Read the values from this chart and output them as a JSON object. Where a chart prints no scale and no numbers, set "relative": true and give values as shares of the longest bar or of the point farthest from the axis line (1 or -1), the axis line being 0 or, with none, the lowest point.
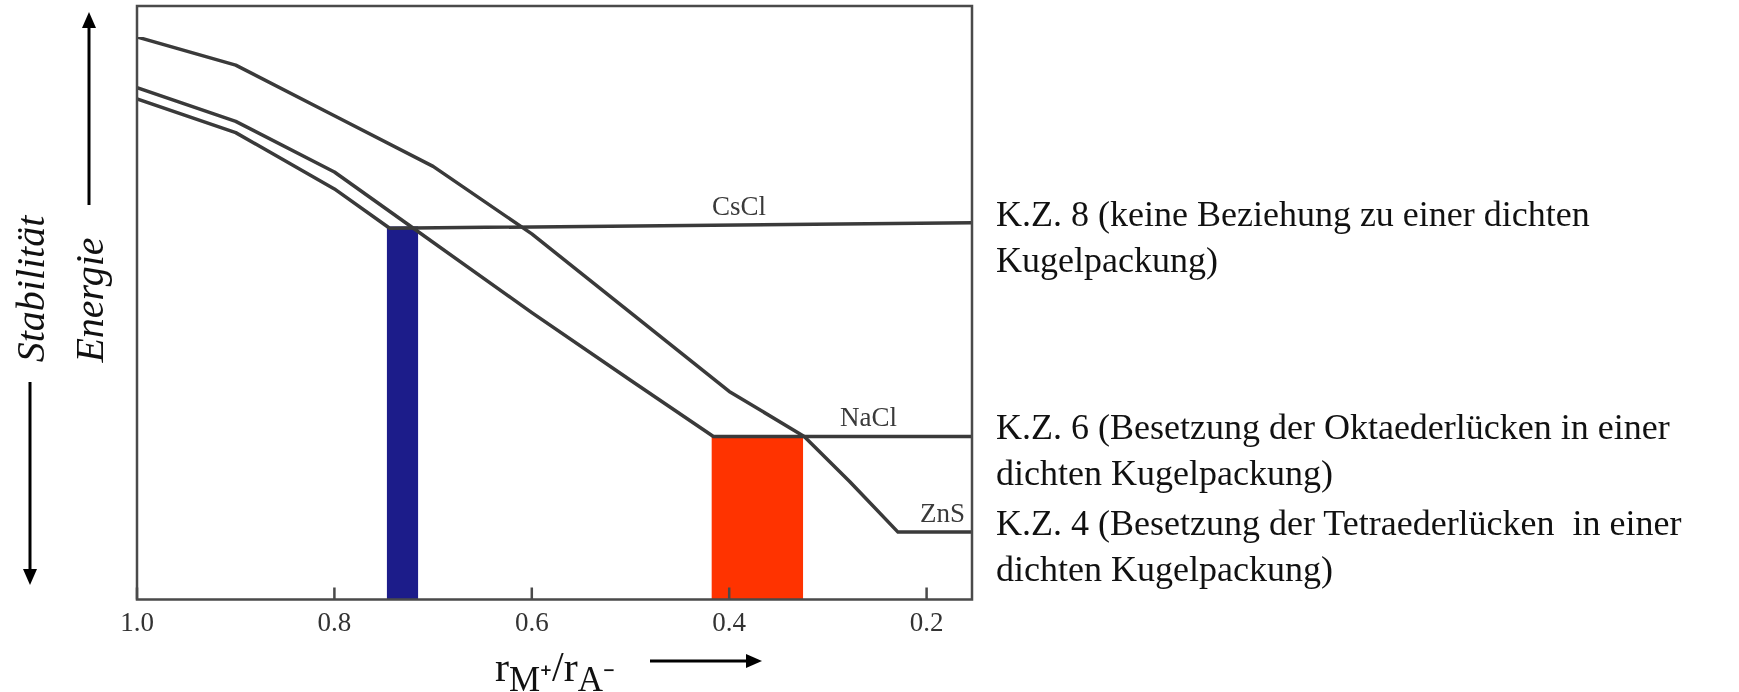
{
  "chart_data": {
    "type": "line",
    "relative": true,
    "legend": false,
    "grid": false,
    "xlabel": "r$_{M⁺}$/r$_{A⁻}$",
    "ylabel": "Energie",
    "xlim": [
      1.0,
      0.154
    ],
    "xticks": [
      {
        "value": 1.0,
        "label": "1.0"
      },
      0.8,
      0.6,
      0.4,
      0.2
    ],
    "series": [
      {
        "name": "CsCl",
        "color": "#3a3a3a",
        "x": [
          1.0,
          0.9,
          0.8,
          0.744,
          0.154
        ],
        "values": [
          0.89,
          0.83,
          0.73,
          0.66,
          0.67
        ]
      },
      {
        "name": "NaCl",
        "color": "#3a3a3a",
        "x": [
          1.0,
          0.9,
          0.8,
          0.72,
          0.6,
          0.5,
          0.416,
          0.154
        ],
        "values": [
          0.91,
          0.85,
          0.76,
          0.66,
          0.51,
          0.39,
          0.29,
          0.29
        ]
      },
      {
        "name": "ZnS",
        "color": "#3a3a3a",
        "x": [
          1.0,
          0.9,
          0.8,
          0.7,
          0.6,
          0.5,
          0.4,
          0.324,
          0.278,
          0.229,
          0.154
        ],
        "values": [
          1.0,
          0.95,
          0.86,
          0.77,
          0.65,
          0.51,
          0.37,
          0.29,
          0.21,
          0.12,
          0.12
        ]
      }
    ],
    "bands": [
      {
        "axis": "x",
        "from": 0.747,
        "to": 0.715,
        "color": "#1c1c8a"
      },
      {
        "axis": "x",
        "from": 0.418,
        "to": 0.325,
        "color": "#ff3300"
      }
    ],
    "annotations": [
      "Stabilität",
      "K.Z. 8 (keine Beziehung zu einer dichten Kugelpackung)",
      "K.Z. 6 (Besetzung der Oktaederlücken in einer dichten Kugelpackung)",
      "K.Z. 4 (Besetzung der Tetraederlücken  in einer dichten Kugelpackung)"
    ]
  }
}
